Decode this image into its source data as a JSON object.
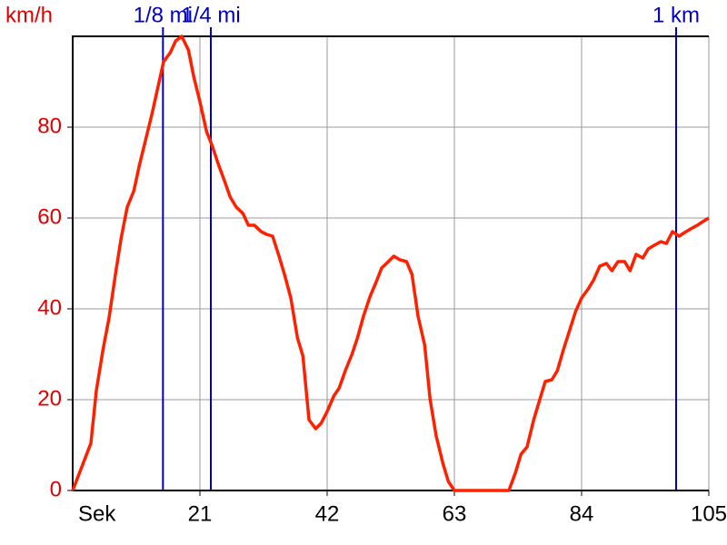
{
  "chart_data": {
    "type": "line",
    "y_label": "km/h",
    "x_label": "Sek",
    "xlim": [
      0,
      105
    ],
    "ylim": [
      0,
      100
    ],
    "xticks": [
      21,
      42,
      63,
      84,
      105
    ],
    "yticks": [
      0,
      20,
      40,
      60,
      80
    ],
    "grid": true,
    "series": [
      {
        "name": "km/h",
        "color": "#ff2000",
        "x": [
          0,
          3,
          3.9,
          5,
          6,
          7.1,
          8,
          9,
          10.1,
          11,
          12,
          13.1,
          14,
          15,
          16.1,
          17,
          18,
          19.1,
          20,
          21,
          22.1,
          23,
          24,
          25.1,
          26,
          27,
          28.1,
          29,
          30,
          31.1,
          32,
          33,
          34.1,
          35,
          36,
          37.1,
          38,
          39,
          40.1,
          41,
          42,
          43.1,
          44,
          45,
          46.1,
          47,
          48,
          49.1,
          50,
          51,
          52.1,
          53,
          54,
          55.1,
          56,
          57,
          58.1,
          59,
          60,
          61.1,
          62,
          63,
          72,
          73.1,
          74,
          75,
          76.1,
          77,
          78,
          79.1,
          80,
          81,
          82.1,
          83,
          84,
          85.1,
          86,
          87,
          88.1,
          89,
          90,
          91.1,
          92,
          93,
          94.1,
          95,
          96,
          97.1,
          98,
          99,
          100.1,
          101,
          102,
          103.1,
          104,
          105
        ],
        "values": [
          0,
          10.4,
          22,
          31,
          38,
          48,
          55.6,
          62.4,
          66,
          71.6,
          77,
          83,
          88.4,
          94.4,
          96.4,
          99,
          100,
          97,
          91,
          85.6,
          79,
          76,
          72,
          68,
          64.6,
          62.4,
          61,
          58.4,
          58.4,
          57,
          56.4,
          56,
          51.4,
          47.4,
          42.4,
          33.6,
          29.6,
          15.6,
          13.6,
          14.8,
          17.4,
          20.8,
          22.6,
          26.4,
          30,
          33.6,
          38.4,
          42.8,
          45.6,
          49,
          50.4,
          51.6,
          50.8,
          50.4,
          47.6,
          38.4,
          32,
          20,
          12,
          6,
          2,
          0,
          0,
          4,
          8,
          9.6,
          15.6,
          19.6,
          24,
          24.4,
          26.4,
          31,
          35.6,
          39.4,
          42.4,
          44.4,
          46.4,
          49.4,
          50,
          48.4,
          50.4,
          50.4,
          48.4,
          52,
          51.2,
          53.2,
          54,
          54.8,
          54.4,
          57,
          56,
          56.8,
          57.6,
          58.4,
          59.2,
          60
        ]
      }
    ],
    "markers": [
      {
        "x": 14.9,
        "label": "1/8 mi",
        "color": "#0000c0"
      },
      {
        "x": 22.8,
        "label": "1/4 mi",
        "color": "#0000c0"
      },
      {
        "x": 99.6,
        "label": "1 km",
        "color": "#0000c0"
      }
    ]
  }
}
